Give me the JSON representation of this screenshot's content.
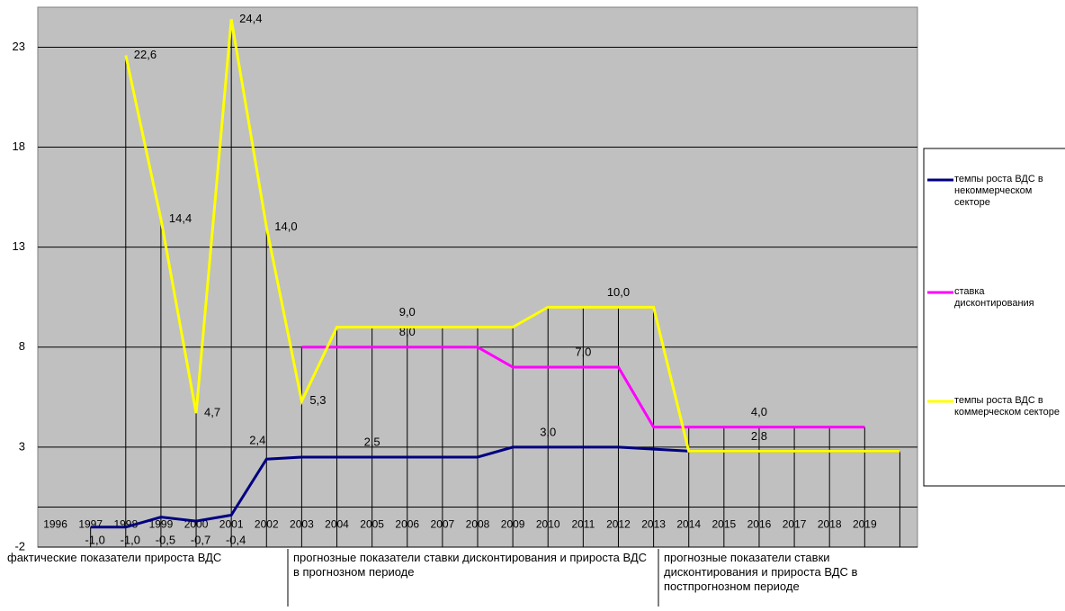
{
  "chart_data": {
    "type": "line",
    "categories": [
      "1996",
      "1997",
      "1998",
      "1999",
      "2000",
      "2001",
      "2002",
      "2003",
      "2004",
      "2005",
      "2006",
      "2007",
      "2008",
      "2009",
      "2010",
      "2011",
      "2012",
      "2013",
      "2014",
      "2015",
      "2016",
      "2017",
      "2018",
      "2019",
      null
    ],
    "ylim": [
      -2,
      25
    ],
    "yticks": [
      -2,
      3,
      8,
      13,
      18,
      23
    ],
    "grid": true,
    "series": [
      {
        "name": "темпы роста ВДС в некоммерческом секторе",
        "color": "#000080",
        "values": [
          null,
          -1.0,
          -1.0,
          -0.5,
          -0.7,
          -0.4,
          2.4,
          2.5,
          2.5,
          2.5,
          2.5,
          2.5,
          2.5,
          3.0,
          3.0,
          3.0,
          3.0,
          2.9,
          2.8,
          2.8,
          2.8,
          2.8,
          2.8,
          2.8,
          2.8
        ],
        "value_labels": [
          null,
          "-1,0",
          "-1,0",
          "-0,5",
          "-0,7",
          "-0,4",
          "2,4",
          null,
          null,
          "2,5",
          null,
          null,
          null,
          null,
          "3,0",
          null,
          null,
          null,
          null,
          null,
          "2,8",
          null,
          null,
          null,
          null
        ]
      },
      {
        "name": "ставка дисконтирования",
        "color": "#ff00ff",
        "values": [
          null,
          null,
          null,
          null,
          null,
          null,
          null,
          8.0,
          8.0,
          8.0,
          8.0,
          8.0,
          8.0,
          7.0,
          7.0,
          7.0,
          7.0,
          4.0,
          4.0,
          4.0,
          4.0,
          4.0,
          4.0,
          4.0,
          null
        ],
        "value_labels": [
          null,
          null,
          null,
          null,
          null,
          null,
          null,
          null,
          null,
          null,
          "8,0",
          null,
          null,
          null,
          null,
          "7,0",
          null,
          null,
          null,
          null,
          "4,0",
          null,
          null,
          null,
          null
        ]
      },
      {
        "name": "темпы роста ВДС в коммерческом секторе",
        "color": "#ffff00",
        "values": [
          null,
          null,
          22.6,
          14.4,
          4.7,
          24.4,
          14.0,
          5.3,
          9.0,
          9.0,
          9.0,
          9.0,
          9.0,
          9.0,
          10.0,
          10.0,
          10.0,
          10.0,
          2.8,
          2.8,
          2.8,
          2.8,
          2.8,
          2.8,
          2.8
        ],
        "value_labels": [
          null,
          null,
          "22,6",
          "14,4",
          "4,7",
          "24,4",
          "14,0",
          "5,3",
          null,
          null,
          "9,0",
          null,
          null,
          null,
          null,
          null,
          "10,0",
          null,
          null,
          null,
          null,
          null,
          null,
          null,
          null
        ]
      }
    ],
    "annotations": [
      "фактические показатели прироста ВДС",
      "прогнозные показатели ставки дисконтирования и прироста ВДС в прогнозном периоде",
      "прогнозные показатели ставки дисконтирования и прироста ВДС в постпрогнозном периоде"
    ]
  }
}
